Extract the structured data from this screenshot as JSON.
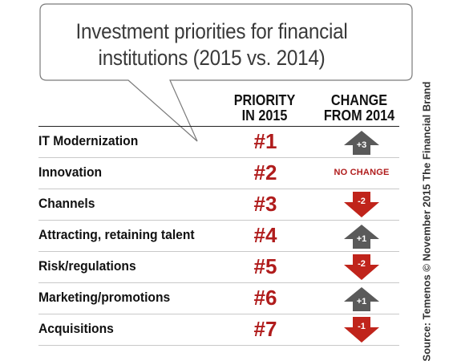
{
  "title": {
    "line1": "Investment priorities for financial",
    "line2": "institutions (2015 vs. 2014)"
  },
  "columns": {
    "priority": "PRIORITY IN 2015",
    "change": "CHANGE FROM 2014"
  },
  "source": "Source: Temenos © November 2015 The Financial Brand",
  "colors": {
    "rank": "#b01c1c",
    "up_arrow": "#5a5a5a",
    "down_arrow": "#c0241b",
    "no_change": "#b01c1c"
  },
  "chart_data": {
    "type": "table",
    "title": "Investment priorities for financial institutions (2015 vs. 2014)",
    "columns": [
      "PRIORITY IN 2015",
      "CHANGE FROM 2014"
    ],
    "rows": [
      {
        "label": "IT Modernization",
        "rank": "#1",
        "change": "+3",
        "direction": "up"
      },
      {
        "label": "Innovation",
        "rank": "#2",
        "change": "NO CHANGE",
        "direction": "none"
      },
      {
        "label": "Channels",
        "rank": "#3",
        "change": "-2",
        "direction": "down"
      },
      {
        "label": "Attracting, retaining talent",
        "rank": "#4",
        "change": "+1",
        "direction": "up"
      },
      {
        "label": "Risk/regulations",
        "rank": "#5",
        "change": "-2",
        "direction": "down"
      },
      {
        "label": "Marketing/promotions",
        "rank": "#6",
        "change": "+1",
        "direction": "up"
      },
      {
        "label": "Acquisitions",
        "rank": "#7",
        "change": "-1",
        "direction": "down"
      }
    ]
  }
}
